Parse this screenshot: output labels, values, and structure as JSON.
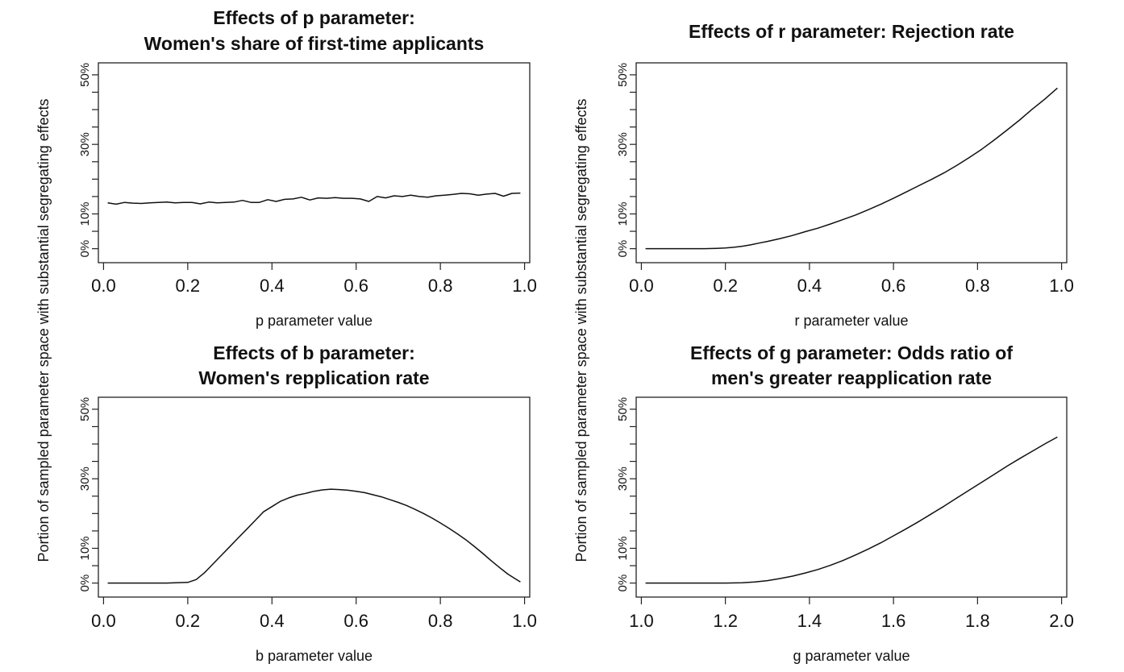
{
  "shared_ylabel": "Portion of sampled parameter space with substantial segregating effects",
  "chart_data": [
    {
      "type": "line",
      "title_lines": [
        "Effects of p parameter:",
        "Women's share of first-time applicants"
      ],
      "xlabel": "p parameter value",
      "ylabel": "Portion of sampled parameter space with substantial segregating effects",
      "xlim": [
        0.0,
        1.0
      ],
      "ylim": [
        0,
        50
      ],
      "xticks": [
        0.0,
        0.2,
        0.4,
        0.6,
        0.8,
        1.0
      ],
      "xtick_labels": [
        "0.0",
        "0.2",
        "0.4",
        "0.6",
        "0.8",
        "1.0"
      ],
      "yticks": [
        0,
        5,
        10,
        15,
        20,
        25,
        30,
        35,
        40,
        45,
        50
      ],
      "ytick_labels": [
        "0%",
        "",
        "10%",
        "",
        "",
        "",
        "30%",
        "",
        "",
        "",
        "50%"
      ],
      "series": [
        {
          "x": [
            0.01,
            0.03,
            0.05,
            0.07,
            0.09,
            0.11,
            0.13,
            0.15,
            0.17,
            0.19,
            0.21,
            0.23,
            0.25,
            0.27,
            0.29,
            0.31,
            0.33,
            0.35,
            0.37,
            0.39,
            0.41,
            0.43,
            0.45,
            0.47,
            0.49,
            0.51,
            0.53,
            0.55,
            0.57,
            0.59,
            0.61,
            0.63,
            0.65,
            0.67,
            0.69,
            0.71,
            0.73,
            0.75,
            0.77,
            0.79,
            0.81,
            0.83,
            0.85,
            0.87,
            0.89,
            0.91,
            0.93,
            0.95,
            0.97,
            0.99
          ],
          "y": [
            13.2,
            12.8,
            13.3,
            13.1,
            13.0,
            13.2,
            13.3,
            13.4,
            13.2,
            13.3,
            13.3,
            12.9,
            13.4,
            13.2,
            13.3,
            13.4,
            13.9,
            13.3,
            13.3,
            14.1,
            13.6,
            14.2,
            14.3,
            14.8,
            14.0,
            14.6,
            14.5,
            14.7,
            14.5,
            14.5,
            14.3,
            13.6,
            15.0,
            14.6,
            15.2,
            15.0,
            15.4,
            15.0,
            14.8,
            15.2,
            15.4,
            15.6,
            15.9,
            15.8,
            15.4,
            15.7,
            15.9,
            15.1,
            15.9,
            16.0
          ]
        }
      ]
    },
    {
      "type": "line",
      "title_lines": [
        "Effects of r parameter: Rejection rate"
      ],
      "xlabel": "r parameter value",
      "ylabel": "Portion of sampled parameter space with substantial segregating effects",
      "xlim": [
        0.0,
        1.0
      ],
      "ylim": [
        0,
        50
      ],
      "xticks": [
        0.0,
        0.2,
        0.4,
        0.6,
        0.8,
        1.0
      ],
      "xtick_labels": [
        "0.0",
        "0.2",
        "0.4",
        "0.6",
        "0.8",
        "1.0"
      ],
      "yticks": [
        0,
        5,
        10,
        15,
        20,
        25,
        30,
        35,
        40,
        45,
        50
      ],
      "ytick_labels": [
        "0%",
        "",
        "10%",
        "",
        "",
        "",
        "30%",
        "",
        "",
        "",
        "50%"
      ],
      "series": [
        {
          "x": [
            0.01,
            0.05,
            0.1,
            0.15,
            0.18,
            0.2,
            0.22,
            0.24,
            0.26,
            0.28,
            0.3,
            0.33,
            0.36,
            0.39,
            0.42,
            0.45,
            0.48,
            0.51,
            0.54,
            0.57,
            0.6,
            0.63,
            0.66,
            0.69,
            0.72,
            0.75,
            0.78,
            0.81,
            0.84,
            0.87,
            0.9,
            0.93,
            0.96,
            0.99
          ],
          "y": [
            0.0,
            0.0,
            0.0,
            0.0,
            0.1,
            0.2,
            0.4,
            0.7,
            1.1,
            1.6,
            2.1,
            2.9,
            3.8,
            4.9,
            5.9,
            7.1,
            8.4,
            9.7,
            11.2,
            12.8,
            14.5,
            16.3,
            18.1,
            19.9,
            21.8,
            23.9,
            26.2,
            28.6,
            31.3,
            34.1,
            37.0,
            40.1,
            43.0,
            46.2
          ]
        }
      ]
    },
    {
      "type": "line",
      "title_lines": [
        "Effects of b parameter:",
        "Women's repplication rate"
      ],
      "xlabel": "b parameter value",
      "ylabel": "Portion of sampled parameter space with substantial segregating effects",
      "xlim": [
        0.0,
        1.0
      ],
      "ylim": [
        0,
        50
      ],
      "xticks": [
        0.0,
        0.2,
        0.4,
        0.6,
        0.8,
        1.0
      ],
      "xtick_labels": [
        "0.0",
        "0.2",
        "0.4",
        "0.6",
        "0.8",
        "1.0"
      ],
      "yticks": [
        0,
        5,
        10,
        15,
        20,
        25,
        30,
        35,
        40,
        45,
        50
      ],
      "ytick_labels": [
        "0%",
        "",
        "10%",
        "",
        "",
        "",
        "30%",
        "",
        "",
        "",
        "50%"
      ],
      "series": [
        {
          "x": [
            0.01,
            0.05,
            0.1,
            0.15,
            0.2,
            0.22,
            0.24,
            0.26,
            0.28,
            0.3,
            0.32,
            0.34,
            0.36,
            0.38,
            0.4,
            0.42,
            0.44,
            0.46,
            0.48,
            0.5,
            0.52,
            0.54,
            0.56,
            0.58,
            0.6,
            0.62,
            0.64,
            0.66,
            0.68,
            0.7,
            0.72,
            0.74,
            0.76,
            0.78,
            0.8,
            0.82,
            0.84,
            0.86,
            0.88,
            0.9,
            0.92,
            0.94,
            0.96,
            0.99
          ],
          "y": [
            0.0,
            0.0,
            0.0,
            0.0,
            0.2,
            1.0,
            3.0,
            5.5,
            8.0,
            10.5,
            13.0,
            15.5,
            18.0,
            20.5,
            22.0,
            23.5,
            24.5,
            25.3,
            25.8,
            26.4,
            26.8,
            27.0,
            26.9,
            26.7,
            26.4,
            26.0,
            25.4,
            24.8,
            24.0,
            23.2,
            22.3,
            21.2,
            20.0,
            18.7,
            17.3,
            15.8,
            14.2,
            12.5,
            10.6,
            8.6,
            6.5,
            4.5,
            2.6,
            0.3
          ]
        }
      ]
    },
    {
      "type": "line",
      "title_lines": [
        "Effects of g parameter: Odds ratio of",
        "men's greater reapplication rate"
      ],
      "xlabel": "g parameter value",
      "ylabel": "Portion of sampled parameter space with substantial segregating effects",
      "xlim": [
        1.0,
        2.0
      ],
      "ylim": [
        0,
        50
      ],
      "xticks": [
        1.0,
        1.2,
        1.4,
        1.6,
        1.8,
        2.0
      ],
      "xtick_labels": [
        "1.0",
        "1.2",
        "1.4",
        "1.6",
        "1.8",
        "2.0"
      ],
      "yticks": [
        0,
        5,
        10,
        15,
        20,
        25,
        30,
        35,
        40,
        45,
        50
      ],
      "ytick_labels": [
        "0%",
        "",
        "10%",
        "",
        "",
        "",
        "30%",
        "",
        "",
        "",
        "50%"
      ],
      "series": [
        {
          "x": [
            1.01,
            1.05,
            1.1,
            1.15,
            1.2,
            1.24,
            1.27,
            1.3,
            1.33,
            1.36,
            1.39,
            1.42,
            1.45,
            1.48,
            1.51,
            1.54,
            1.57,
            1.6,
            1.63,
            1.66,
            1.69,
            1.72,
            1.75,
            1.78,
            1.81,
            1.84,
            1.87,
            1.9,
            1.93,
            1.96,
            1.99
          ],
          "y": [
            0.0,
            0.0,
            0.0,
            0.0,
            0.0,
            0.1,
            0.3,
            0.7,
            1.3,
            2.0,
            2.9,
            3.9,
            5.1,
            6.5,
            8.1,
            9.8,
            11.6,
            13.6,
            15.6,
            17.7,
            19.9,
            22.1,
            24.4,
            26.7,
            29.0,
            31.3,
            33.6,
            35.8,
            37.9,
            40.0,
            42.0
          ]
        }
      ]
    }
  ]
}
